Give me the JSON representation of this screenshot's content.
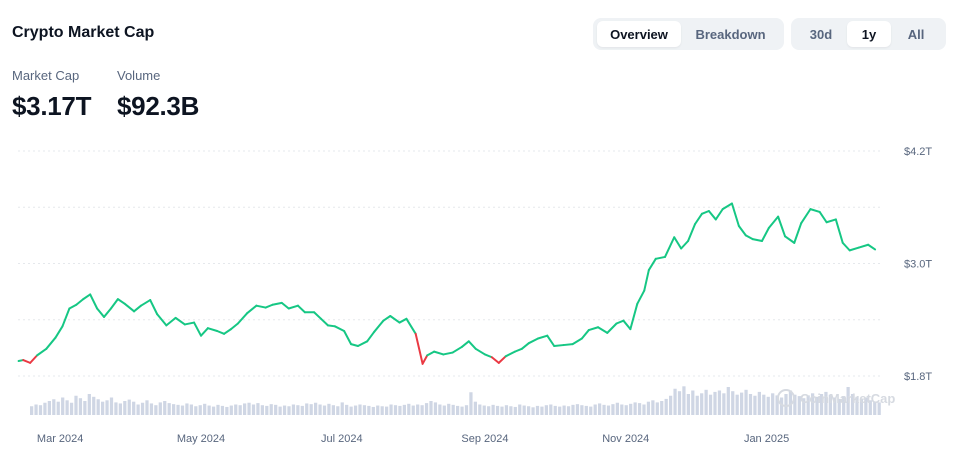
{
  "header": {
    "title": "Crypto Market Cap"
  },
  "view_toggle": {
    "options": [
      "Overview",
      "Breakdown"
    ],
    "selected": "Overview"
  },
  "range_toggle": {
    "options": [
      "30d",
      "1y",
      "All"
    ],
    "selected": "1y"
  },
  "stats": {
    "market_cap_label": "Market Cap",
    "market_cap_value": "$3.17T",
    "volume_label": "Volume",
    "volume_value": "$92.3B"
  },
  "watermark": "CoinMarketCap",
  "colors": {
    "up": "#16c784",
    "down": "#ea3943",
    "grid": "#e5e8ec",
    "volume": "#cfd6e4"
  },
  "chart_data": {
    "type": "line",
    "y_unit": "trillion USD",
    "ylim": [
      1.8,
      4.2
    ],
    "y_ticks": [
      {
        "value": 4.2,
        "label": "$4.2T"
      },
      {
        "value": 3.0,
        "label": "$3.0T"
      },
      {
        "value": 1.8,
        "label": "$1.8T"
      }
    ],
    "x_range": [
      "2024-02-10",
      "2025-02-20"
    ],
    "x_ticks": [
      {
        "date": "2024-03-01",
        "label": "Mar 2024"
      },
      {
        "date": "2024-05-01",
        "label": "May 2024"
      },
      {
        "date": "2024-07-01",
        "label": "Jul 2024"
      },
      {
        "date": "2024-09-01",
        "label": "Sep 2024"
      },
      {
        "date": "2024-11-01",
        "label": "Nov 2024"
      },
      {
        "date": "2025-01-01",
        "label": "Jan 2025"
      }
    ],
    "grid": "horizontal dashed",
    "series": [
      {
        "points": [
          [
            "2024-02-12",
            1.96
          ],
          [
            "2024-02-14",
            1.97
          ],
          [
            "2024-02-17",
            1.94
          ],
          [
            "2024-02-20",
            2.02
          ],
          [
            "2024-02-24",
            2.09
          ],
          [
            "2024-02-28",
            2.21
          ],
          [
            "2024-03-02",
            2.33
          ],
          [
            "2024-03-05",
            2.52
          ],
          [
            "2024-03-08",
            2.56
          ],
          [
            "2024-03-11",
            2.62
          ],
          [
            "2024-03-14",
            2.67
          ],
          [
            "2024-03-17",
            2.52
          ],
          [
            "2024-03-20",
            2.43
          ],
          [
            "2024-03-23",
            2.52
          ],
          [
            "2024-03-26",
            2.62
          ],
          [
            "2024-03-29",
            2.57
          ],
          [
            "2024-04-02",
            2.49
          ],
          [
            "2024-04-05",
            2.55
          ],
          [
            "2024-04-09",
            2.61
          ],
          [
            "2024-04-12",
            2.46
          ],
          [
            "2024-04-16",
            2.34
          ],
          [
            "2024-04-20",
            2.42
          ],
          [
            "2024-04-24",
            2.35
          ],
          [
            "2024-04-28",
            2.37
          ],
          [
            "2024-05-01",
            2.23
          ],
          [
            "2024-05-04",
            2.31
          ],
          [
            "2024-05-08",
            2.28
          ],
          [
            "2024-05-11",
            2.25
          ],
          [
            "2024-05-14",
            2.3
          ],
          [
            "2024-05-17",
            2.36
          ],
          [
            "2024-05-21",
            2.47
          ],
          [
            "2024-05-25",
            2.55
          ],
          [
            "2024-05-29",
            2.53
          ],
          [
            "2024-06-01",
            2.56
          ],
          [
            "2024-06-05",
            2.58
          ],
          [
            "2024-06-08",
            2.52
          ],
          [
            "2024-06-12",
            2.55
          ],
          [
            "2024-06-15",
            2.48
          ],
          [
            "2024-06-19",
            2.48
          ],
          [
            "2024-06-22",
            2.41
          ],
          [
            "2024-06-25",
            2.34
          ],
          [
            "2024-06-28",
            2.33
          ],
          [
            "2024-07-02",
            2.28
          ],
          [
            "2024-07-05",
            2.14
          ],
          [
            "2024-07-08",
            2.12
          ],
          [
            "2024-07-12",
            2.17
          ],
          [
            "2024-07-15",
            2.27
          ],
          [
            "2024-07-19",
            2.39
          ],
          [
            "2024-07-22",
            2.44
          ],
          [
            "2024-07-26",
            2.37
          ],
          [
            "2024-07-29",
            2.41
          ],
          [
            "2024-08-02",
            2.25
          ],
          [
            "2024-08-05",
            1.93
          ],
          [
            "2024-08-07",
            2.02
          ],
          [
            "2024-08-10",
            2.06
          ],
          [
            "2024-08-14",
            2.03
          ],
          [
            "2024-08-18",
            2.05
          ],
          [
            "2024-08-22",
            2.11
          ],
          [
            "2024-08-25",
            2.17
          ],
          [
            "2024-08-28",
            2.09
          ],
          [
            "2024-09-01",
            2.03
          ],
          [
            "2024-09-04",
            2.0
          ],
          [
            "2024-09-07",
            1.94
          ],
          [
            "2024-09-10",
            2.01
          ],
          [
            "2024-09-14",
            2.06
          ],
          [
            "2024-09-17",
            2.09
          ],
          [
            "2024-09-20",
            2.15
          ],
          [
            "2024-09-24",
            2.2
          ],
          [
            "2024-09-28",
            2.23
          ],
          [
            "2024-10-01",
            2.12
          ],
          [
            "2024-10-05",
            2.13
          ],
          [
            "2024-10-09",
            2.14
          ],
          [
            "2024-10-13",
            2.2
          ],
          [
            "2024-10-16",
            2.29
          ],
          [
            "2024-10-20",
            2.32
          ],
          [
            "2024-10-24",
            2.26
          ],
          [
            "2024-10-28",
            2.36
          ],
          [
            "2024-10-31",
            2.39
          ],
          [
            "2024-11-03",
            2.3
          ],
          [
            "2024-11-06",
            2.57
          ],
          [
            "2024-11-09",
            2.71
          ],
          [
            "2024-11-11",
            2.93
          ],
          [
            "2024-11-14",
            3.05
          ],
          [
            "2024-11-18",
            3.07
          ],
          [
            "2024-11-22",
            3.28
          ],
          [
            "2024-11-25",
            3.16
          ],
          [
            "2024-11-28",
            3.24
          ],
          [
            "2024-12-01",
            3.42
          ],
          [
            "2024-12-04",
            3.53
          ],
          [
            "2024-12-07",
            3.56
          ],
          [
            "2024-12-10",
            3.47
          ],
          [
            "2024-12-13",
            3.58
          ],
          [
            "2024-12-17",
            3.64
          ],
          [
            "2024-12-20",
            3.4
          ],
          [
            "2024-12-23",
            3.3
          ],
          [
            "2024-12-26",
            3.26
          ],
          [
            "2024-12-30",
            3.24
          ],
          [
            "2025-01-02",
            3.38
          ],
          [
            "2025-01-06",
            3.5
          ],
          [
            "2025-01-09",
            3.29
          ],
          [
            "2025-01-13",
            3.22
          ],
          [
            "2025-01-16",
            3.43
          ],
          [
            "2025-01-20",
            3.58
          ],
          [
            "2025-01-24",
            3.55
          ],
          [
            "2025-01-27",
            3.44
          ],
          [
            "2025-01-31",
            3.47
          ],
          [
            "2025-02-03",
            3.22
          ],
          [
            "2025-02-06",
            3.14
          ],
          [
            "2025-02-10",
            3.17
          ],
          [
            "2025-02-14",
            3.2
          ],
          [
            "2025-02-17",
            3.15
          ]
        ]
      }
    ],
    "volume": [
      0.25,
      0.3,
      0.28,
      0.35,
      0.4,
      0.45,
      0.38,
      0.5,
      0.42,
      0.35,
      0.55,
      0.48,
      0.4,
      0.6,
      0.52,
      0.45,
      0.38,
      0.42,
      0.5,
      0.36,
      0.33,
      0.4,
      0.44,
      0.38,
      0.3,
      0.35,
      0.42,
      0.33,
      0.28,
      0.36,
      0.4,
      0.34,
      0.31,
      0.29,
      0.27,
      0.33,
      0.3,
      0.25,
      0.28,
      0.32,
      0.27,
      0.24,
      0.29,
      0.26,
      0.23,
      0.27,
      0.3,
      0.28,
      0.33,
      0.35,
      0.3,
      0.34,
      0.28,
      0.26,
      0.31,
      0.29,
      0.24,
      0.27,
      0.25,
      0.3,
      0.28,
      0.26,
      0.33,
      0.31,
      0.35,
      0.3,
      0.27,
      0.32,
      0.28,
      0.25,
      0.36,
      0.29,
      0.24,
      0.27,
      0.3,
      0.28,
      0.26,
      0.23,
      0.27,
      0.25,
      0.24,
      0.3,
      0.28,
      0.26,
      0.29,
      0.32,
      0.27,
      0.3,
      0.28,
      0.34,
      0.4,
      0.36,
      0.3,
      0.27,
      0.32,
      0.29,
      0.26,
      0.24,
      0.28,
      0.65,
      0.38,
      0.3,
      0.27,
      0.25,
      0.29,
      0.26,
      0.24,
      0.28,
      0.25,
      0.23,
      0.3,
      0.27,
      0.25,
      0.22,
      0.26,
      0.24,
      0.28,
      0.3,
      0.26,
      0.24,
      0.27,
      0.25,
      0.29,
      0.31,
      0.28,
      0.26,
      0.24,
      0.3,
      0.33,
      0.29,
      0.27,
      0.31,
      0.35,
      0.3,
      0.28,
      0.32,
      0.36,
      0.34,
      0.3,
      0.38,
      0.42,
      0.36,
      0.4,
      0.46,
      0.55,
      0.75,
      0.68,
      0.82,
      0.6,
      0.7,
      0.55,
      0.62,
      0.72,
      0.58,
      0.66,
      0.7,
      0.62,
      0.8,
      0.68,
      0.58,
      0.64,
      0.72,
      0.6,
      0.55,
      0.66,
      0.58,
      0.52,
      0.62,
      0.56,
      0.5,
      0.6,
      0.7,
      0.58,
      0.54,
      0.48,
      0.56,
      0.62,
      0.52,
      0.6,
      0.66,
      0.58,
      0.5,
      0.46,
      0.54,
      0.8,
      0.6,
      0.52,
      0.45,
      0.5,
      0.42,
      0.38,
      0.36
    ]
  }
}
